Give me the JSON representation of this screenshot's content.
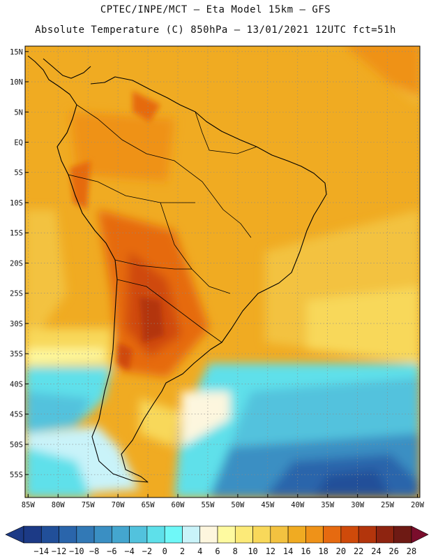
{
  "header": {
    "title_line1": "CPTEC/INPE/MCT –  Eta Model 15km – GFS",
    "title_line2": "Absolute Temperature (C) 850hPa – 13/01/2021 12UTC fct=51h"
  },
  "map": {
    "lat_labels": [
      "15N",
      "10N",
      "5N",
      "EQ",
      "5S",
      "10S",
      "15S",
      "20S",
      "25S",
      "30S",
      "35S",
      "40S",
      "45S",
      "50S",
      "55S"
    ],
    "lon_labels": [
      "85W",
      "80W",
      "75W",
      "70W",
      "65W",
      "60W",
      "55W",
      "50W",
      "45W",
      "40W",
      "35W",
      "30W",
      "25W",
      "20W"
    ],
    "lat_range": [
      15.9,
      -58.8
    ],
    "lon_range": [
      -85.5,
      -19.6
    ],
    "colors": {
      "land_outline": "#000000",
      "grid": "#8a8a8a"
    }
  },
  "colorbar": {
    "labels": [
      "-14",
      "-12",
      "-10",
      "-8",
      "-6",
      "-4",
      "-2",
      "0",
      "2",
      "4",
      "6",
      "8",
      "10",
      "12",
      "14",
      "16",
      "18",
      "20",
      "22",
      "24",
      "26",
      "28"
    ],
    "colors": [
      "#1c3a86",
      "#214f99",
      "#2a65ab",
      "#3279b6",
      "#3a8fc3",
      "#44a6cf",
      "#52c2dd",
      "#5ee0ea",
      "#6ff8f8",
      "#c9f3f9",
      "#fdf6de",
      "#fefaa0",
      "#fcea78",
      "#f8d85a",
      "#f3c240",
      "#f0ab22",
      "#ef9218",
      "#e66a10",
      "#cf4a0a",
      "#b3350c",
      "#8e2410",
      "#6e1a14"
    ],
    "under_color": "#1c3a86",
    "over_color": "#7a0d2c"
  }
}
